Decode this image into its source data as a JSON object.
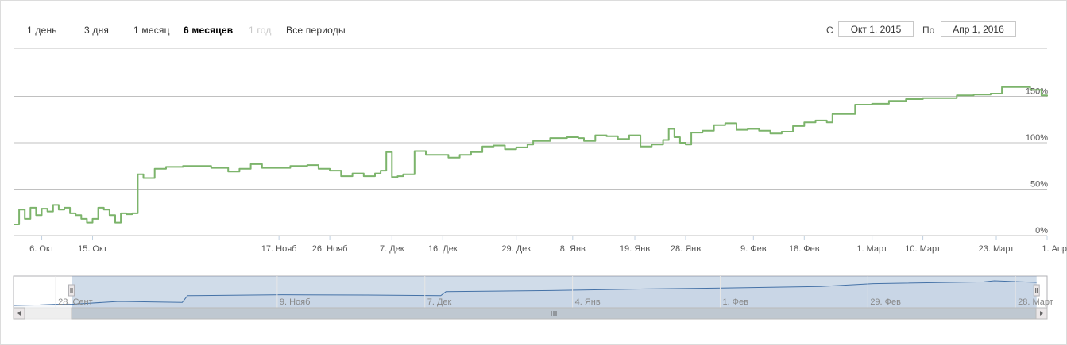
{
  "range_selector": {
    "buttons": [
      {
        "label": "1 день",
        "state": "normal"
      },
      {
        "label": "3 дня",
        "state": "normal"
      },
      {
        "label": "1 месяц",
        "state": "normal"
      },
      {
        "label": "6 месяцев",
        "state": "active"
      },
      {
        "label": "1 год",
        "state": "disabled"
      },
      {
        "label": "Все периоды",
        "state": "normal"
      }
    ]
  },
  "date_range": {
    "from_label": "С",
    "from_value": "Окт 1, 2015",
    "to_label": "По",
    "to_value": "Апр 1, 2016"
  },
  "chart_data": {
    "type": "line",
    "series": [
      {
        "color": "#7cb46b",
        "points": [
          [
            "2015-10-01",
            12
          ],
          [
            "2015-10-02",
            28
          ],
          [
            "2015-10-03",
            18
          ],
          [
            "2015-10-04",
            30
          ],
          [
            "2015-10-05",
            22
          ],
          [
            "2015-10-06",
            29
          ],
          [
            "2015-10-07",
            26
          ],
          [
            "2015-10-08",
            33
          ],
          [
            "2015-10-09",
            28
          ],
          [
            "2015-10-10",
            30
          ],
          [
            "2015-10-11",
            24
          ],
          [
            "2015-10-12",
            22
          ],
          [
            "2015-10-13",
            18
          ],
          [
            "2015-10-14",
            14
          ],
          [
            "2015-10-15",
            18
          ],
          [
            "2015-10-16",
            30
          ],
          [
            "2015-10-17",
            28
          ],
          [
            "2015-10-18",
            22
          ],
          [
            "2015-10-19",
            14
          ],
          [
            "2015-10-20",
            24
          ],
          [
            "2015-10-21",
            23
          ],
          [
            "2015-10-22",
            24
          ],
          [
            "2015-10-23",
            66
          ],
          [
            "2015-10-24",
            62
          ],
          [
            "2015-10-26",
            72
          ],
          [
            "2015-10-28",
            74
          ],
          [
            "2015-10-31",
            75
          ],
          [
            "2015-11-03",
            75
          ],
          [
            "2015-11-05",
            73
          ],
          [
            "2015-11-08",
            69
          ],
          [
            "2015-11-10",
            72
          ],
          [
            "2015-11-12",
            77
          ],
          [
            "2015-11-14",
            73
          ],
          [
            "2015-11-17",
            73
          ],
          [
            "2015-11-19",
            75
          ],
          [
            "2015-11-22",
            76
          ],
          [
            "2015-11-24",
            72
          ],
          [
            "2015-11-26",
            70
          ],
          [
            "2015-11-28",
            64
          ],
          [
            "2015-11-30",
            67
          ],
          [
            "2015-12-02",
            64
          ],
          [
            "2015-12-04",
            67
          ],
          [
            "2015-12-05",
            70
          ],
          [
            "2015-12-06",
            90
          ],
          [
            "2015-12-07",
            63
          ],
          [
            "2015-12-08",
            64
          ],
          [
            "2015-12-09",
            66
          ],
          [
            "2015-12-10",
            66
          ],
          [
            "2015-12-11",
            91
          ],
          [
            "2015-12-13",
            87
          ],
          [
            "2015-12-15",
            87
          ],
          [
            "2015-12-17",
            84
          ],
          [
            "2015-12-19",
            87
          ],
          [
            "2015-12-21",
            90
          ],
          [
            "2015-12-23",
            96
          ],
          [
            "2015-12-25",
            97
          ],
          [
            "2015-12-27",
            93
          ],
          [
            "2015-12-29",
            95
          ],
          [
            "2015-12-31",
            98
          ],
          [
            "2016-01-01",
            102
          ],
          [
            "2016-01-04",
            105
          ],
          [
            "2016-01-07",
            106
          ],
          [
            "2016-01-08",
            106
          ],
          [
            "2016-01-09",
            105
          ],
          [
            "2016-01-10",
            102
          ],
          [
            "2016-01-12",
            108
          ],
          [
            "2016-01-14",
            107
          ],
          [
            "2016-01-16",
            104
          ],
          [
            "2016-01-18",
            108
          ],
          [
            "2016-01-20",
            96
          ],
          [
            "2016-01-22",
            98
          ],
          [
            "2016-01-24",
            103
          ],
          [
            "2016-01-25",
            115
          ],
          [
            "2016-01-26",
            106
          ],
          [
            "2016-01-27",
            100
          ],
          [
            "2016-01-28",
            98
          ],
          [
            "2016-01-29",
            111
          ],
          [
            "2016-01-31",
            113
          ],
          [
            "2016-02-02",
            119
          ],
          [
            "2016-02-04",
            121
          ],
          [
            "2016-02-06",
            114
          ],
          [
            "2016-02-08",
            115
          ],
          [
            "2016-02-10",
            113
          ],
          [
            "2016-02-12",
            110
          ],
          [
            "2016-02-14",
            112
          ],
          [
            "2016-02-16",
            118
          ],
          [
            "2016-02-18",
            122
          ],
          [
            "2016-02-20",
            124
          ],
          [
            "2016-02-22",
            122
          ],
          [
            "2016-02-23",
            131
          ],
          [
            "2016-02-25",
            131
          ],
          [
            "2016-02-27",
            141
          ],
          [
            "2016-03-01",
            142
          ],
          [
            "2016-03-04",
            145
          ],
          [
            "2016-03-07",
            147
          ],
          [
            "2016-03-10",
            148
          ],
          [
            "2016-03-13",
            148
          ],
          [
            "2016-03-16",
            151
          ],
          [
            "2016-03-19",
            152
          ],
          [
            "2016-03-22",
            153
          ],
          [
            "2016-03-24",
            160
          ],
          [
            "2016-03-27",
            160
          ],
          [
            "2016-03-29",
            157
          ],
          [
            "2016-03-31",
            151
          ],
          [
            "2016-04-01",
            150
          ]
        ]
      }
    ],
    "y_axis": {
      "ticks": [
        0,
        50,
        100,
        150
      ],
      "tick_labels": [
        "0%",
        "50%",
        "100%",
        "150%"
      ],
      "range": [
        0,
        200
      ],
      "gridlines": true,
      "position": "right"
    },
    "x_axis": {
      "range": [
        "2015-10-01",
        "2016-04-01"
      ],
      "ticks": [
        {
          "date": "2015-10-06",
          "label": "6. Окт"
        },
        {
          "date": "2015-10-15",
          "label": "15. Окт"
        },
        {
          "date": "2015-11-17",
          "label": "17. Нояб"
        },
        {
          "date": "2015-11-26",
          "label": "26. Нояб"
        },
        {
          "date": "2015-12-07",
          "label": "7. Дек"
        },
        {
          "date": "2015-12-16",
          "label": "16. Дек"
        },
        {
          "date": "2015-12-29",
          "label": "29. Дек"
        },
        {
          "date": "2016-01-08",
          "label": "8. Янв"
        },
        {
          "date": "2016-01-19",
          "label": "19. Янв"
        },
        {
          "date": "2016-01-28",
          "label": "28. Янв"
        },
        {
          "date": "2016-02-09",
          "label": "9. Фев"
        },
        {
          "date": "2016-02-18",
          "label": "18. Фев"
        },
        {
          "date": "2016-03-01",
          "label": "1. Март"
        },
        {
          "date": "2016-03-10",
          "label": "10. Март"
        },
        {
          "date": "2016-03-23",
          "label": "23. Март"
        },
        {
          "date": "2016-04-01",
          "label": "1. Апр"
        }
      ]
    },
    "navigator": {
      "range": [
        "2015-09-20",
        "2016-04-03"
      ],
      "selected": [
        "2015-10-01",
        "2016-04-01"
      ],
      "series_color": "#4572a7",
      "points": [
        [
          "2015-09-20",
          5
        ],
        [
          "2015-09-25",
          8
        ],
        [
          "2015-09-28",
          12
        ],
        [
          "2015-10-01",
          12
        ],
        [
          "2015-10-10",
          30
        ],
        [
          "2015-10-22",
          24
        ],
        [
          "2015-10-23",
          66
        ],
        [
          "2015-11-10",
          72
        ],
        [
          "2015-11-26",
          70
        ],
        [
          "2015-12-10",
          66
        ],
        [
          "2015-12-11",
          91
        ],
        [
          "2015-12-31",
          98
        ],
        [
          "2016-01-18",
          108
        ],
        [
          "2016-01-31",
          113
        ],
        [
          "2016-02-20",
          124
        ],
        [
          "2016-03-01",
          142
        ],
        [
          "2016-03-22",
          153
        ],
        [
          "2016-03-24",
          160
        ],
        [
          "2016-04-01",
          150
        ]
      ],
      "ticks": [
        {
          "date": "2015-09-28",
          "label": "28. Сент"
        },
        {
          "date": "2015-11-09",
          "label": "9. Нояб"
        },
        {
          "date": "2015-12-07",
          "label": "7. Дек"
        },
        {
          "date": "2016-01-04",
          "label": "4. Янв"
        },
        {
          "date": "2016-02-01",
          "label": "1. Фев"
        },
        {
          "date": "2016-02-29",
          "label": "29. Фев"
        },
        {
          "date": "2016-03-28",
          "label": "28. Март"
        }
      ]
    }
  }
}
